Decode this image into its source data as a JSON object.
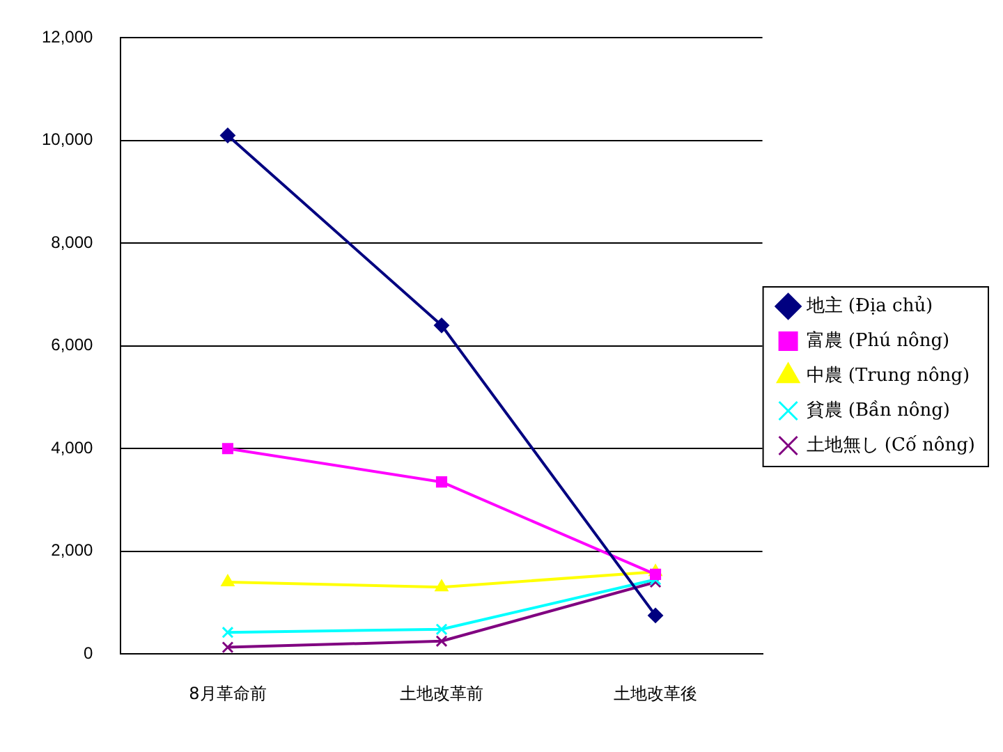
{
  "chart_data": {
    "type": "line",
    "categories": [
      "8月革命前",
      "土地改革前",
      "土地改革後"
    ],
    "series": [
      {
        "name": "地主 (Địa chủ)",
        "color": "#000080",
        "marker": "diamond",
        "values": [
          10100,
          6400,
          750
        ]
      },
      {
        "name": "富農 (Phú nông)",
        "color": "#ff00ff",
        "marker": "square",
        "values": [
          4000,
          3350,
          1550
        ]
      },
      {
        "name": "中農 (Trung nông)",
        "color": "#ffff00",
        "marker": "triangle",
        "values": [
          1400,
          1300,
          1600
        ]
      },
      {
        "name": "貧農 (Bần nông)",
        "color": "#00ffff",
        "marker": "cross",
        "values": [
          420,
          480,
          1450
        ]
      },
      {
        "name": "土地無し (Cố nông)",
        "color": "#800080",
        "marker": "cross",
        "values": [
          130,
          250,
          1400
        ]
      }
    ],
    "ylim": [
      0,
      12000
    ],
    "yticks": [
      {
        "value": 0,
        "label": "0"
      },
      {
        "value": 2000,
        "label": "2,000"
      },
      {
        "value": 4000,
        "label": "4,000"
      },
      {
        "value": 6000,
        "label": "6,000"
      },
      {
        "value": 8000,
        "label": "8,000"
      },
      {
        "value": 10000,
        "label": "10,000"
      },
      {
        "value": 12000,
        "label": "12,000"
      }
    ],
    "grid": "y",
    "legend": "right"
  }
}
